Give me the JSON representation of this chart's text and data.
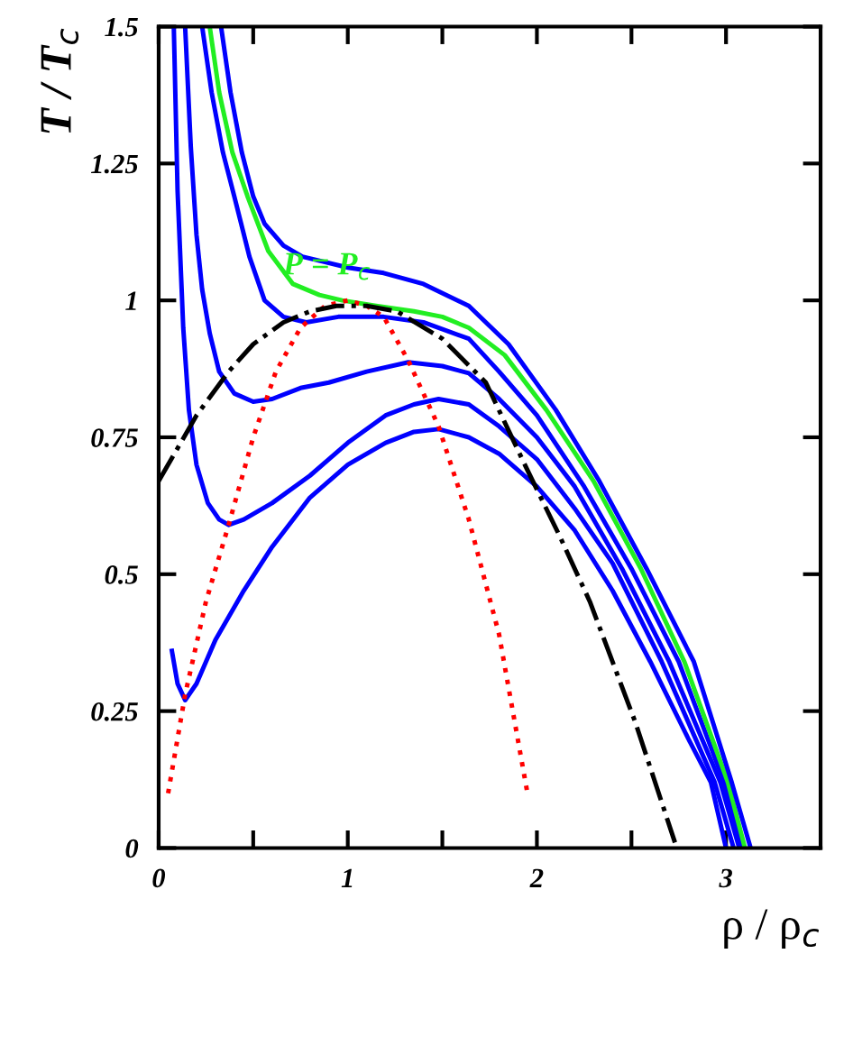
{
  "chart_data": {
    "type": "line",
    "xlabel": "ρ / ρ$_{c}$",
    "ylabel": "T / T$_{c}$",
    "xlim": [
      0,
      3.5
    ],
    "ylim": [
      0,
      1.5
    ],
    "xticks": [
      0,
      {
        "value": 0.5,
        "label": null
      },
      1,
      {
        "value": 1.5,
        "label": null
      },
      2,
      {
        "value": 2.5,
        "label": null
      },
      3
    ],
    "yticks": [
      0,
      0.25,
      0.5,
      0.75,
      1,
      1.25,
      1.5
    ],
    "grid": false,
    "legend": false,
    "marker": "none",
    "annotations": [
      {
        "text": "P = P$_{c}$",
        "x": 0.71,
        "y": 1.03
      }
    ],
    "series": [
      {
        "color": "#0000ff",
        "line_style": "solid",
        "x": [
          0.07,
          0.1,
          0.14,
          0.2,
          0.3,
          0.45,
          0.6,
          0.8,
          1.0,
          1.2,
          1.35,
          1.48,
          1.64,
          1.8,
          2.0,
          2.2,
          2.4,
          2.6,
          2.8,
          2.92,
          3.0
        ],
        "values": [
          0.36,
          0.3,
          0.27,
          0.3,
          0.38,
          0.47,
          0.55,
          0.64,
          0.7,
          0.74,
          0.76,
          0.765,
          0.75,
          0.72,
          0.66,
          0.58,
          0.47,
          0.34,
          0.2,
          0.12,
          0
        ]
      },
      {
        "color": "#0000ff",
        "line_style": "solid",
        "x": [
          0.08,
          0.1,
          0.13,
          0.16,
          0.2,
          0.26,
          0.32,
          0.37,
          0.45,
          0.6,
          0.8,
          1.0,
          1.2,
          1.35,
          1.48,
          1.64,
          1.8,
          2.0,
          2.2,
          2.4,
          2.66,
          2.94,
          3.04
        ],
        "values": [
          1.5,
          1.2,
          0.95,
          0.8,
          0.7,
          0.63,
          0.6,
          0.59,
          0.6,
          0.63,
          0.68,
          0.74,
          0.79,
          0.81,
          0.82,
          0.81,
          0.77,
          0.71,
          0.62,
          0.52,
          0.34,
          0.12,
          0
        ]
      },
      {
        "color": "#0000ff",
        "line_style": "solid",
        "x": [
          0.14,
          0.17,
          0.2,
          0.23,
          0.27,
          0.32,
          0.4,
          0.5,
          0.6,
          0.75,
          0.9,
          1.1,
          1.32,
          1.5,
          1.64,
          1.8,
          2.0,
          2.2,
          2.45,
          2.7,
          2.97,
          3.07
        ],
        "values": [
          1.5,
          1.28,
          1.12,
          1.02,
          0.94,
          0.87,
          0.83,
          0.815,
          0.82,
          0.84,
          0.85,
          0.87,
          0.887,
          0.88,
          0.867,
          0.82,
          0.75,
          0.66,
          0.51,
          0.34,
          0.12,
          0
        ]
      },
      {
        "color": "#0000ff",
        "line_style": "solid",
        "x": [
          0.23,
          0.28,
          0.34,
          0.4,
          0.48,
          0.56,
          0.66,
          0.78,
          0.95,
          1.19,
          1.4,
          1.64,
          1.8,
          2.0,
          2.25,
          2.5,
          2.75,
          2.99,
          3.09
        ],
        "values": [
          1.5,
          1.38,
          1.27,
          1.19,
          1.08,
          1.0,
          0.97,
          0.96,
          0.97,
          0.97,
          0.96,
          0.93,
          0.87,
          0.79,
          0.66,
          0.51,
          0.34,
          0.12,
          0
        ]
      },
      {
        "color": "#22ee22",
        "line_style": "solid",
        "x": [
          0.27,
          0.32,
          0.39,
          0.47,
          0.58,
          0.71,
          0.85,
          0.97,
          1.15,
          1.35,
          1.5,
          1.64,
          1.83,
          2.05,
          2.3,
          2.55,
          2.78,
          3.01,
          3.1
        ],
        "values": [
          1.5,
          1.38,
          1.27,
          1.19,
          1.09,
          1.03,
          1.01,
          1.0,
          0.99,
          0.98,
          0.97,
          0.95,
          0.9,
          0.8,
          0.67,
          0.51,
          0.34,
          0.12,
          0
        ]
      },
      {
        "color": "#0000ff",
        "line_style": "solid",
        "x": [
          0.33,
          0.38,
          0.44,
          0.5,
          0.56,
          0.66,
          0.76,
          0.88,
          1.0,
          1.19,
          1.4,
          1.64,
          1.85,
          2.1,
          2.33,
          2.58,
          2.83,
          3.03,
          3.13
        ],
        "values": [
          1.5,
          1.38,
          1.27,
          1.19,
          1.14,
          1.1,
          1.08,
          1.07,
          1.06,
          1.05,
          1.03,
          0.99,
          0.92,
          0.8,
          0.67,
          0.51,
          0.34,
          0.12,
          0
        ]
      },
      {
        "color": "#ff0000",
        "line_style": "dotted",
        "x": [
          0.05,
          0.14,
          0.25,
          0.37,
          0.5,
          0.62,
          0.75,
          0.88,
          1.0,
          1.1,
          1.19,
          1.32,
          1.48,
          1.64,
          1.8,
          1.95
        ],
        "values": [
          0.1,
          0.28,
          0.45,
          0.59,
          0.75,
          0.87,
          0.95,
          0.99,
          1.0,
          0.99,
          0.97,
          0.89,
          0.77,
          0.6,
          0.39,
          0.1
        ]
      },
      {
        "color": "#000000",
        "line_style": "dashdot",
        "x": [
          0,
          0.05,
          0.2,
          0.37,
          0.5,
          0.66,
          0.8,
          0.94,
          1.1,
          1.26,
          1.5,
          1.73,
          1.95,
          2.12,
          2.28,
          2.52,
          2.73
        ],
        "values": [
          0.67,
          0.7,
          0.79,
          0.87,
          0.92,
          0.96,
          0.98,
          0.99,
          0.99,
          0.98,
          0.93,
          0.85,
          0.69,
          0.57,
          0.45,
          0.23,
          0.01
        ]
      }
    ]
  }
}
